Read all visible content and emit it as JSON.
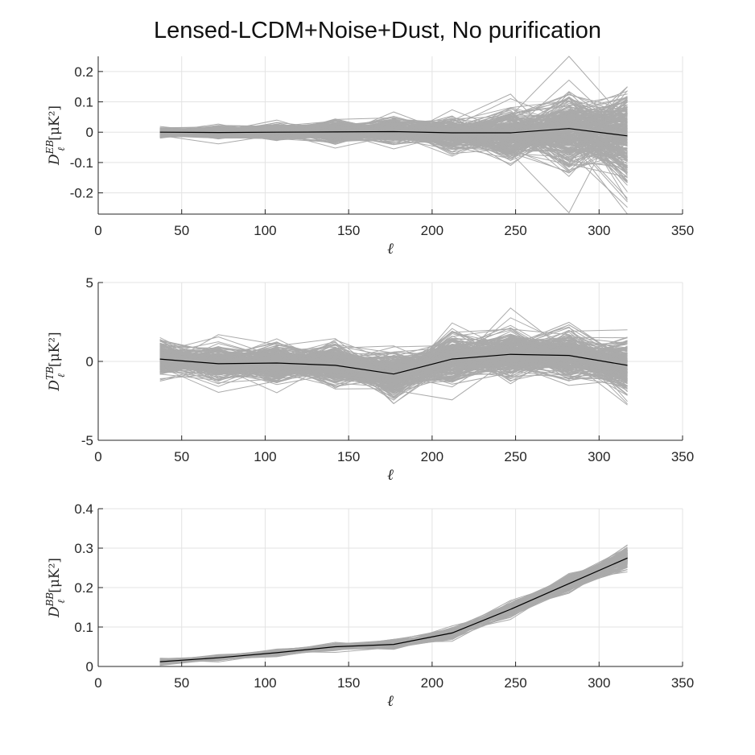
{
  "figure": {
    "title": "Lensed-LCDM+Noise+Dust, No purification"
  },
  "colors": {
    "realizations": "#aaaaaa",
    "mean": "#000000",
    "grid": "#e3e3e3",
    "axis": "#262626"
  },
  "chart_data": [
    {
      "type": "line",
      "name": "EB",
      "ylabel": {
        "main": "D",
        "sup": "EB",
        "sub": "ℓ",
        "unit": "[μK²]"
      },
      "xlabel": "ℓ",
      "xlim": [
        0,
        350
      ],
      "ylim": [
        -0.27,
        0.25
      ],
      "xticks": [
        0,
        50,
        100,
        150,
        200,
        250,
        300,
        350
      ],
      "xtick_labels": [
        "0",
        "50",
        "100",
        "150",
        "200",
        "250",
        "300",
        "350"
      ],
      "yticks": [
        -0.2,
        -0.1,
        0,
        0.1,
        0.2
      ],
      "ytick_labels": [
        "-0.2",
        "-0.1",
        "0",
        "0.1",
        "0.2"
      ],
      "grid": true,
      "x": [
        37,
        72,
        107,
        142,
        177,
        212,
        247,
        282,
        317
      ],
      "mean": [
        0.0,
        -0.001,
        0.0,
        0.001,
        0.002,
        -0.002,
        -0.002,
        0.012,
        -0.012
      ],
      "spread": [
        0.012,
        0.016,
        0.022,
        0.028,
        0.032,
        0.045,
        0.07,
        0.11,
        0.14
      ],
      "realizations": 300
    },
    {
      "type": "line",
      "name": "TB",
      "ylabel": {
        "main": "D",
        "sup": "TB",
        "sub": "ℓ",
        "unit": "[μK²]"
      },
      "xlabel": "ℓ",
      "xlim": [
        0,
        350
      ],
      "ylim": [
        -5,
        5
      ],
      "xticks": [
        0,
        50,
        100,
        150,
        200,
        250,
        300,
        350
      ],
      "xtick_labels": [
        "0",
        "50",
        "100",
        "150",
        "200",
        "250",
        "300",
        "350"
      ],
      "yticks": [
        -5,
        0,
        5
      ],
      "ytick_labels": [
        "-5",
        "0",
        "5"
      ],
      "grid": true,
      "x": [
        37,
        72,
        107,
        142,
        177,
        212,
        247,
        282,
        317
      ],
      "mean": [
        0.15,
        -0.15,
        -0.1,
        -0.25,
        -0.8,
        0.15,
        0.45,
        0.38,
        -0.25
      ],
      "spread": [
        0.9,
        0.95,
        1.0,
        1.1,
        1.2,
        1.25,
        1.3,
        1.3,
        1.4
      ],
      "realizations": 300
    },
    {
      "type": "line",
      "name": "BB",
      "ylabel": {
        "main": "D",
        "sup": "BB",
        "sub": "ℓ",
        "unit": "[μK²]"
      },
      "xlabel": "ℓ",
      "xlim": [
        0,
        350
      ],
      "ylim": [
        0,
        0.4
      ],
      "xticks": [
        0,
        50,
        100,
        150,
        200,
        250,
        300,
        350
      ],
      "xtick_labels": [
        "0",
        "50",
        "100",
        "150",
        "200",
        "250",
        "300",
        "350"
      ],
      "yticks": [
        0,
        0.1,
        0.2,
        0.3,
        0.4
      ],
      "ytick_labels": [
        "0",
        "0.1",
        "0.2",
        "0.3",
        "0.4"
      ],
      "grid": true,
      "x": [
        37,
        72,
        107,
        142,
        177,
        212,
        247,
        282,
        317
      ],
      "mean": [
        0.012,
        0.022,
        0.035,
        0.05,
        0.056,
        0.085,
        0.145,
        0.21,
        0.275
      ],
      "spread": [
        0.006,
        0.005,
        0.006,
        0.007,
        0.008,
        0.01,
        0.013,
        0.016,
        0.02
      ],
      "realizations": 300
    }
  ]
}
